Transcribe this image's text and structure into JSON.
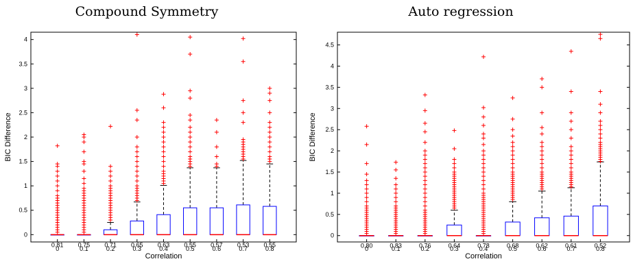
{
  "chart_data": [
    {
      "type": "box",
      "title": "Compound Symmetry",
      "xlabel": "Correlation",
      "ylabel": "BIC Difference",
      "categories": [
        "0",
        "0.1",
        "0.2",
        "0.3",
        "0.4",
        "0.5",
        "0.6",
        "0.7",
        "0.8"
      ],
      "ylim": [
        -0.15,
        4.15
      ],
      "yticks": [
        "0",
        "0.5",
        "1",
        "1.5",
        "2",
        "2.5",
        "3",
        "3.5",
        "4"
      ],
      "colors": {
        "box": "#0000ff",
        "median": "#ff0000",
        "whisker": "#000000",
        "outlier": "#ff0000"
      },
      "annotations": [
        "0.81",
        "0.75",
        "0.71",
        "0.65",
        "0.63",
        "0.55",
        "0.57",
        "0.53",
        "0.55"
      ],
      "boxes": [
        {
          "q1": 0,
          "median": 0,
          "q3": 0,
          "upper_whisker": 0,
          "outliers": [
            0.05,
            0.1,
            0.15,
            0.2,
            0.25,
            0.3,
            0.35,
            0.4,
            0.45,
            0.5,
            0.55,
            0.6,
            0.65,
            0.7,
            0.75,
            0.8,
            0.9,
            1.0,
            1.1,
            1.2,
            1.3,
            1.4,
            1.45,
            1.82
          ]
        },
        {
          "q1": 0,
          "median": 0,
          "q3": 0,
          "upper_whisker": 0,
          "outliers": [
            0.05,
            0.1,
            0.15,
            0.2,
            0.25,
            0.3,
            0.35,
            0.4,
            0.45,
            0.5,
            0.55,
            0.6,
            0.65,
            0.7,
            0.75,
            0.8,
            0.85,
            0.9,
            0.95,
            1.05,
            1.15,
            1.3,
            1.45,
            1.5,
            1.7,
            1.9,
            2.0,
            2.05
          ]
        },
        {
          "q1": 0,
          "median": 0,
          "q3": 0.1,
          "upper_whisker": 0.25,
          "outliers": [
            0.3,
            0.35,
            0.4,
            0.45,
            0.5,
            0.55,
            0.6,
            0.65,
            0.7,
            0.75,
            0.8,
            0.85,
            0.9,
            0.95,
            1.0,
            1.1,
            1.2,
            1.3,
            1.4,
            2.22
          ]
        },
        {
          "q1": 0,
          "median": 0,
          "q3": 0.28,
          "upper_whisker": 0.67,
          "outliers": [
            0.7,
            0.75,
            0.8,
            0.85,
            0.9,
            0.95,
            1.0,
            1.1,
            1.2,
            1.3,
            1.4,
            1.5,
            1.6,
            1.7,
            1.8,
            2.0,
            2.35,
            2.55,
            4.1
          ]
        },
        {
          "q1": 0,
          "median": 0,
          "q3": 0.41,
          "upper_whisker": 1.01,
          "outliers": [
            1.05,
            1.1,
            1.15,
            1.2,
            1.25,
            1.3,
            1.4,
            1.5,
            1.6,
            1.7,
            1.8,
            1.9,
            2.0,
            2.1,
            2.2,
            2.3,
            2.6,
            2.88
          ]
        },
        {
          "q1": 0,
          "median": 0,
          "q3": 0.55,
          "upper_whisker": 1.37,
          "outliers": [
            1.4,
            1.45,
            1.5,
            1.55,
            1.6,
            1.7,
            1.8,
            1.9,
            2.0,
            2.1,
            2.2,
            2.35,
            2.45,
            2.8,
            2.95,
            3.7,
            4.05
          ]
        },
        {
          "q1": 0,
          "median": 0,
          "q3": 0.55,
          "upper_whisker": 1.37,
          "outliers": [
            1.4,
            1.45,
            1.6,
            1.8,
            2.1,
            2.35
          ]
        },
        {
          "q1": 0,
          "median": 0,
          "q3": 0.61,
          "upper_whisker": 1.52,
          "outliers": [
            1.55,
            1.6,
            1.65,
            1.7,
            1.75,
            1.8,
            1.85,
            1.9,
            1.95,
            2.3,
            2.5,
            2.75,
            3.55,
            4.02
          ]
        },
        {
          "q1": 0,
          "median": 0,
          "q3": 0.58,
          "upper_whisker": 1.45,
          "outliers": [
            1.5,
            1.55,
            1.6,
            1.7,
            1.8,
            1.9,
            2.0,
            2.1,
            2.2,
            2.3,
            2.5,
            2.75,
            2.9,
            3.0
          ]
        }
      ]
    },
    {
      "type": "box",
      "title": "Auto regression",
      "xlabel": "Correlation",
      "ylabel": "BIC Difference",
      "categories": [
        "0",
        "0.1",
        "0.2",
        "0.3",
        "0.4",
        "0.5",
        "0.6",
        "0.7",
        "0.8"
      ],
      "ylim": [
        -0.15,
        4.8
      ],
      "yticks": [
        "0",
        "0.5",
        "1",
        "1.5",
        "2",
        "2.5",
        "3",
        "3.5",
        "4",
        "4.5"
      ],
      "colors": {
        "box": "#0000ff",
        "median": "#ff0000",
        "whisker": "#000000",
        "outlier": "#ff0000"
      },
      "annotations": [
        "0.80",
        "0.83",
        "0.76",
        "0.64",
        "0.78",
        "0.68",
        "0.62",
        "0.61",
        "0.52"
      ],
      "boxes": [
        {
          "q1": 0,
          "median": 0,
          "q3": 0,
          "upper_whisker": 0,
          "outliers": [
            0.05,
            0.1,
            0.15,
            0.2,
            0.25,
            0.3,
            0.35,
            0.4,
            0.45,
            0.5,
            0.55,
            0.6,
            0.65,
            0.7,
            0.8,
            0.9,
            1.0,
            1.1,
            1.2,
            1.3,
            1.45,
            1.7,
            2.15,
            2.58
          ]
        },
        {
          "q1": 0,
          "median": 0,
          "q3": 0,
          "upper_whisker": 0,
          "outliers": [
            0.05,
            0.1,
            0.15,
            0.2,
            0.25,
            0.3,
            0.35,
            0.4,
            0.45,
            0.5,
            0.55,
            0.6,
            0.65,
            0.7,
            0.8,
            0.9,
            1.0,
            1.1,
            1.2,
            1.35,
            1.55,
            1.73
          ]
        },
        {
          "q1": 0,
          "median": 0,
          "q3": 0,
          "upper_whisker": 0,
          "outliers": [
            0.05,
            0.1,
            0.15,
            0.2,
            0.25,
            0.3,
            0.35,
            0.4,
            0.45,
            0.5,
            0.55,
            0.6,
            0.7,
            0.8,
            0.9,
            1.0,
            1.1,
            1.2,
            1.3,
            1.4,
            1.5,
            1.6,
            1.7,
            1.8,
            1.9,
            2.0,
            2.2,
            2.45,
            2.65,
            2.95,
            3.32
          ]
        },
        {
          "q1": 0,
          "median": 0,
          "q3": 0.25,
          "upper_whisker": 0.6,
          "outliers": [
            0.65,
            0.7,
            0.75,
            0.8,
            0.85,
            0.9,
            0.95,
            1.0,
            1.05,
            1.1,
            1.15,
            1.2,
            1.25,
            1.3,
            1.35,
            1.4,
            1.45,
            1.5,
            1.6,
            1.7,
            1.8,
            2.05,
            2.48
          ]
        },
        {
          "q1": 0,
          "median": 0,
          "q3": 0,
          "upper_whisker": 0,
          "outliers": [
            0.05,
            0.1,
            0.15,
            0.2,
            0.25,
            0.3,
            0.35,
            0.4,
            0.45,
            0.5,
            0.55,
            0.6,
            0.65,
            0.7,
            0.75,
            0.8,
            0.85,
            0.9,
            0.95,
            1.0,
            1.1,
            1.2,
            1.3,
            1.4,
            1.5,
            1.6,
            1.7,
            1.8,
            1.9,
            2.0,
            2.15,
            2.3,
            2.4,
            2.6,
            2.8,
            3.02,
            4.22
          ]
        },
        {
          "q1": 0,
          "median": 0,
          "q3": 0.32,
          "upper_whisker": 0.8,
          "outliers": [
            0.85,
            0.9,
            0.95,
            1.0,
            1.05,
            1.1,
            1.15,
            1.2,
            1.25,
            1.3,
            1.35,
            1.4,
            1.45,
            1.5,
            1.6,
            1.7,
            1.8,
            1.9,
            2.0,
            2.1,
            2.2,
            2.35,
            2.5,
            2.75,
            3.25
          ]
        },
        {
          "q1": 0,
          "median": 0,
          "q3": 0.42,
          "upper_whisker": 1.05,
          "outliers": [
            1.1,
            1.15,
            1.2,
            1.25,
            1.3,
            1.35,
            1.4,
            1.45,
            1.5,
            1.6,
            1.7,
            1.8,
            1.9,
            2.0,
            2.1,
            2.2,
            2.4,
            2.55,
            2.9,
            3.5,
            3.7
          ]
        },
        {
          "q1": 0,
          "median": 0,
          "q3": 0.46,
          "upper_whisker": 1.13,
          "outliers": [
            1.15,
            1.2,
            1.25,
            1.3,
            1.35,
            1.4,
            1.45,
            1.5,
            1.6,
            1.7,
            1.8,
            1.9,
            2.0,
            2.1,
            2.3,
            2.5,
            2.7,
            2.9,
            3.4,
            4.35
          ]
        },
        {
          "q1": 0,
          "median": 0,
          "q3": 0.7,
          "upper_whisker": 1.74,
          "outliers": [
            1.75,
            1.8,
            1.85,
            1.9,
            1.95,
            2.0,
            2.05,
            2.1,
            2.15,
            2.2,
            2.3,
            2.4,
            2.5,
            2.6,
            2.7,
            2.9,
            3.1,
            3.4,
            4.65,
            4.75
          ]
        }
      ]
    }
  ]
}
